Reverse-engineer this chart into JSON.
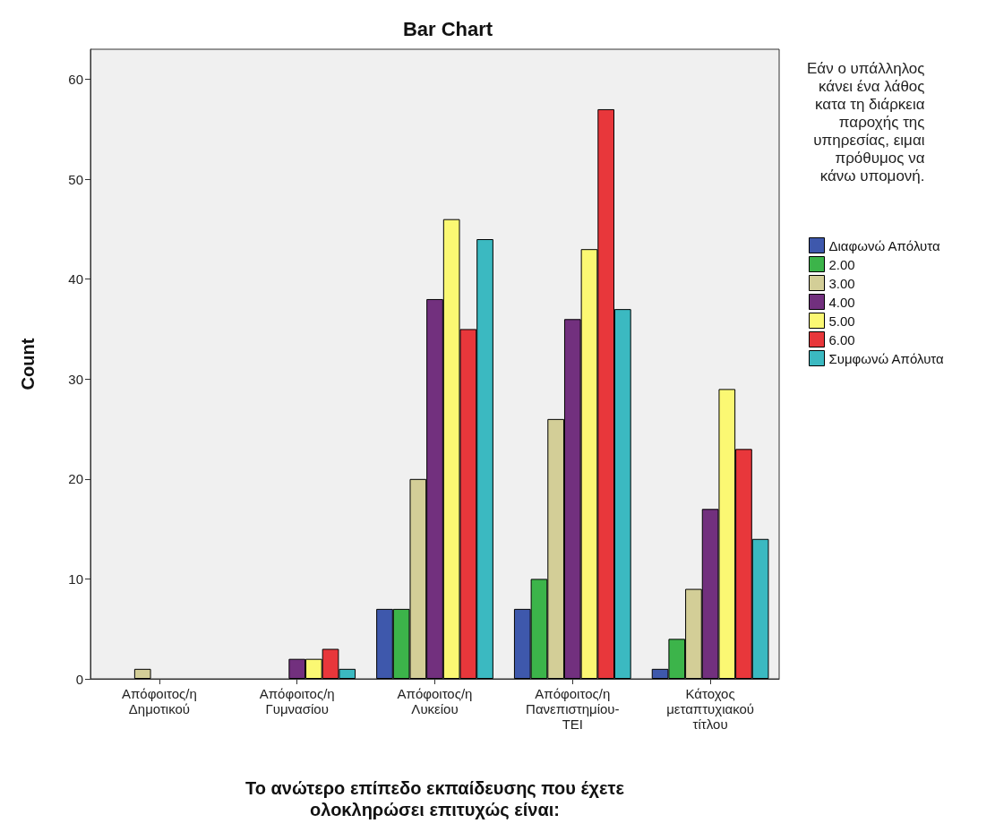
{
  "chart_data": {
    "type": "bar",
    "title": "Bar Chart",
    "xlabel": "Το ανώτερο επίπεδο εκπαίδευσης που έχετε\nολοκληρώσει επιτυχώς είναι:",
    "ylabel": "Count",
    "legend_title": "Εάν ο υπάλληλος\nκάνει ένα λάθος\nκατα τη διάρκεια\nπαροχής της\nυπηρεσίας, ειμαι\nπρόθυμος να\nκάνω υπομονή.",
    "categories": [
      "Απόφοιτος/η\nΔημοτικού",
      "Απόφοιτος/η\nΓυμνασίου",
      "Απόφοιτος/η\nΛυκείου",
      "Απόφοιτος/η\nΠανεπιστημίου-\nΤΕΙ",
      "Κάτοχος\nμεταπτυχιακού\nτίτλου"
    ],
    "series": [
      {
        "name": "Διαφωνώ Απόλυτα",
        "color": "#3e58ac",
        "values": [
          null,
          null,
          7,
          7,
          1
        ]
      },
      {
        "name": "2.00",
        "color": "#3cb44a",
        "values": [
          null,
          null,
          7,
          10,
          4
        ]
      },
      {
        "name": "3.00",
        "color": "#d3ce97",
        "values": [
          1,
          null,
          20,
          26,
          9
        ]
      },
      {
        "name": "4.00",
        "color": "#72307e",
        "values": [
          null,
          2,
          38,
          36,
          17
        ]
      },
      {
        "name": "5.00",
        "color": "#fbf873",
        "values": [
          null,
          2,
          46,
          43,
          29
        ]
      },
      {
        "name": "6.00",
        "color": "#e8373b",
        "values": [
          null,
          3,
          35,
          57,
          23
        ]
      },
      {
        "name": "Συμφωνώ Απόλυτα",
        "color": "#3bb9c1",
        "values": [
          null,
          1,
          44,
          37,
          14
        ]
      }
    ],
    "ylim": [
      0,
      63
    ],
    "yticks": [
      0,
      10,
      20,
      30,
      40,
      50,
      60
    ],
    "grid": false,
    "legend": "right"
  }
}
